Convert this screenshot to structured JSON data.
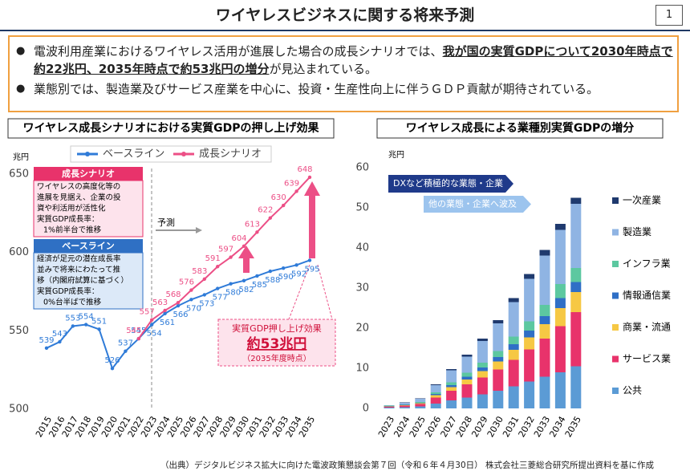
{
  "header": {
    "title": "ワイヤレスビジネスに関する将来予測",
    "page_number": "1"
  },
  "bullets": [
    [
      "電波利用産業におけるワイヤレス活用が進展した場合の成長シナリオでは、",
      "我が国の実質GDPについて2030年時点で約22兆円、2035年時点で約53兆円の増分",
      "が見込まれている。"
    ],
    [
      "業態別では、製造業及びサービス産業を中心に、投資・生産性向上に伴うＧＤＰ貢献が期待されている。"
    ]
  ],
  "chart_data": [
    {
      "type": "line",
      "title": "ワイヤレス成長シナリオにおける実質GDPの押し上げ効果",
      "y_unit": "兆円",
      "categories": [
        "2015",
        "2016",
        "2017",
        "2018",
        "2019",
        "2020",
        "2021",
        "2022",
        "2023",
        "2024",
        "2025",
        "2026",
        "2027",
        "2028",
        "2029",
        "2030",
        "2031",
        "2032",
        "2033",
        "2034",
        "2035"
      ],
      "series": [
        {
          "name": "ベースライン",
          "color": "#2f7bd8",
          "values": [
            539,
            543,
            553,
            554,
            551,
            526,
            537,
            545,
            554,
            561,
            566,
            570,
            573,
            577,
            580,
            582,
            585,
            588,
            590,
            592,
            595
          ]
        },
        {
          "name": "成長シナリオ",
          "color": "#ec4f86",
          "values": [
            null,
            null,
            null,
            null,
            null,
            null,
            null,
            545,
            557,
            563,
            568,
            576,
            583,
            591,
            597,
            604,
            613,
            622,
            630,
            639,
            648
          ]
        }
      ],
      "ylim": [
        500,
        650
      ],
      "yticks": [
        500,
        550,
        600,
        650
      ],
      "grid": false,
      "legend": "top",
      "forecast_label": "予測",
      "notes": [
        {
          "title": "成長シナリオ",
          "lines": [
            "ワイヤレスの高度化等の",
            "進展を見据え、企業の投",
            "資や利活用が活性化",
            "実質GDP成長率：",
            "1%前半台で推移"
          ]
        },
        {
          "title": "ベースライン",
          "lines": [
            "経済が足元の潜在成長率",
            "並みで将来にわたって推",
            "移（内閣府試算に基づく）",
            "実質GDP成長率：",
            "0%台半ばで推移"
          ]
        }
      ],
      "callout": {
        "title": "実質GDP押し上げ効果",
        "value": "約53兆円",
        "note": "（2035年度時点）"
      }
    },
    {
      "type": "bar",
      "stacked": true,
      "title": "ワイヤレス成長による業種別実質GDPの増分",
      "y_unit": "兆円",
      "categories": [
        "2023",
        "2024",
        "2025",
        "2026",
        "2027",
        "2028",
        "2029",
        "2030",
        "2031",
        "2032",
        "2033",
        "2034",
        "2035"
      ],
      "series": [
        {
          "name": "公共",
          "color": "#5b9bd5",
          "values": [
            0.2,
            0.3,
            0.5,
            1.2,
            2,
            2.7,
            3.5,
            4.4,
            5.5,
            6.7,
            7.9,
            9,
            10.5
          ]
        },
        {
          "name": "サービス業",
          "color": "#e8336b",
          "values": [
            0.2,
            0.4,
            0.6,
            1.5,
            2.4,
            3.3,
            4.2,
            5.3,
            6.6,
            8,
            9.5,
            11.5,
            13.5
          ]
        },
        {
          "name": "商業・流通",
          "color": "#f6c844",
          "values": [
            0.1,
            0.1,
            0.2,
            0.6,
            0.9,
            1.2,
            1.6,
            2,
            2.5,
            3,
            3.6,
            4.5,
            5
          ]
        },
        {
          "name": "情報通信業",
          "color": "#2f6fc6",
          "values": [
            0.1,
            0.1,
            0.1,
            0.3,
            0.5,
            0.7,
            0.9,
            1.1,
            1.4,
            1.7,
            2,
            2.5,
            2.5
          ]
        },
        {
          "name": "インフラ業",
          "color": "#5cc8a0",
          "values": [
            0.1,
            0.1,
            0.2,
            0.4,
            0.7,
            1,
            1.2,
            1.5,
            1.9,
            2.3,
            2.8,
            3.5,
            3.5
          ]
        },
        {
          "name": "製造業",
          "color": "#8fb4e3",
          "values": [
            0.1,
            0.4,
            0.8,
            1.8,
            3,
            4,
            5.4,
            6.9,
            8.6,
            10.6,
            12.3,
            13.5,
            16
          ]
        },
        {
          "name": "一次産業",
          "color": "#1f3a6e",
          "values": [
            0,
            0.1,
            0.1,
            0.2,
            0.3,
            0.5,
            0.6,
            0.8,
            1,
            1.2,
            1.4,
            1.5,
            1.5
          ]
        }
      ],
      "ylim": [
        0,
        60
      ],
      "yticks": [
        0,
        10,
        20,
        30,
        40,
        50,
        60
      ],
      "grid": false,
      "legend": "right",
      "annotations": [
        "DXなど積極的な業態・企業",
        "他の業態・企業へ波及"
      ]
    }
  ],
  "source": "（出典）デジタルビジネス拡大に向けた電波政策懇談会第７回（令和６年４月30日） 株式会社三菱総合研究所提出資料を基に作成"
}
